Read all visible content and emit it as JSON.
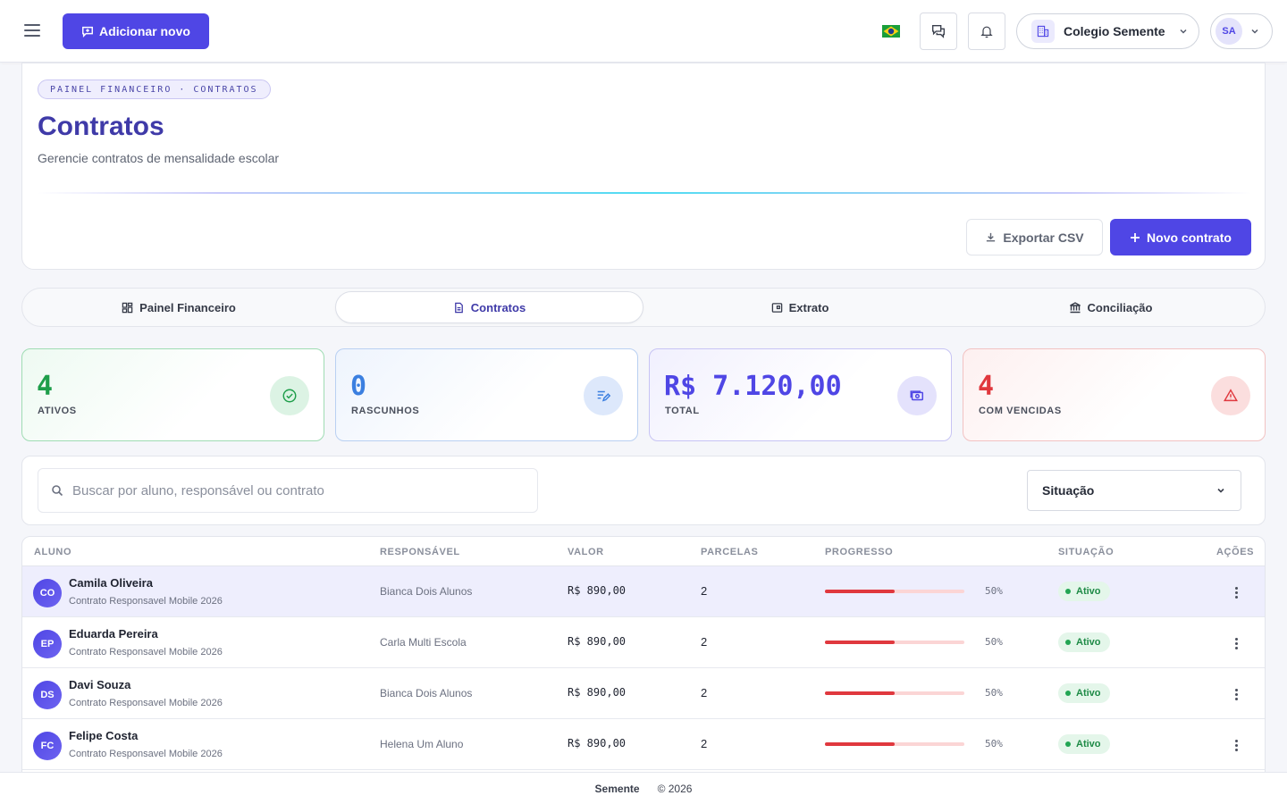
{
  "topbar": {
    "add_new_label": "Adicionar novo",
    "school_name": "Colegio Semente",
    "user_initials": "SA"
  },
  "header": {
    "breadcrumb": [
      "PAINEL FINANCEIRO",
      "·",
      "CONTRATOS"
    ],
    "title": "Contratos",
    "subtitle": "Gerencie contratos de mensalidade escolar",
    "export_label": "Exportar CSV",
    "new_contract_label": "Novo contrato"
  },
  "tabs": [
    {
      "label": "Painel Financeiro",
      "icon": "dashboard-icon",
      "active": false
    },
    {
      "label": "Contratos",
      "icon": "document-icon",
      "active": true
    },
    {
      "label": "Extrato",
      "icon": "statement-icon",
      "active": false
    },
    {
      "label": "Conciliação",
      "icon": "bank-icon",
      "active": false
    }
  ],
  "stats": [
    {
      "value": "4",
      "label": "ATIVOS",
      "color": "#1e9e4a",
      "icon": "check-circle-icon"
    },
    {
      "value": "0",
      "label": "RASCUNHOS",
      "color": "#3b7fe0",
      "icon": "edit-list-icon"
    },
    {
      "value": "R$ 7.120,00",
      "label": "TOTAL",
      "color": "#4f46e5",
      "icon": "money-icon"
    },
    {
      "value": "4",
      "label": "COM VENCIDAS",
      "color": "#e0383e",
      "icon": "warning-icon"
    }
  ],
  "filters": {
    "search_placeholder": "Buscar por aluno, responsável ou contrato",
    "situacao_label": "Situação"
  },
  "table": {
    "headers": [
      "ALUNO",
      "RESPONSÁVEL",
      "VALOR",
      "PARCELAS",
      "PROGRESSO",
      "SITUAÇÃO",
      "AÇÕES"
    ],
    "rows": [
      {
        "initials": "CO",
        "name": "Camila Oliveira",
        "contract": "Contrato Responsavel Mobile 2026",
        "responsavel": "Bianca Dois Alunos",
        "valor": "R$ 890,00",
        "parcelas": "2",
        "progresso": "50%",
        "situacao": "Ativo",
        "highlighted": true
      },
      {
        "initials": "EP",
        "name": "Eduarda Pereira",
        "contract": "Contrato Responsavel Mobile 2026",
        "responsavel": "Carla Multi Escola",
        "valor": "R$ 890,00",
        "parcelas": "2",
        "progresso": "50%",
        "situacao": "Ativo",
        "highlighted": false
      },
      {
        "initials": "DS",
        "name": "Davi Souza",
        "contract": "Contrato Responsavel Mobile 2026",
        "responsavel": "Bianca Dois Alunos",
        "valor": "R$ 890,00",
        "parcelas": "2",
        "progresso": "50%",
        "situacao": "Ativo",
        "highlighted": false
      },
      {
        "initials": "FC",
        "name": "Felipe Costa",
        "contract": "Contrato Responsavel Mobile 2026",
        "responsavel": "Helena Um Aluno",
        "valor": "R$ 890,00",
        "parcelas": "2",
        "progresso": "50%",
        "situacao": "Ativo",
        "highlighted": false
      }
    ]
  },
  "footer": {
    "brand": "Semente",
    "copyright": "© 2026"
  },
  "colors": {
    "accent": "#4f46e5",
    "title": "#3f3aa8",
    "success": "#1e9e4a",
    "danger": "#e0383e"
  }
}
